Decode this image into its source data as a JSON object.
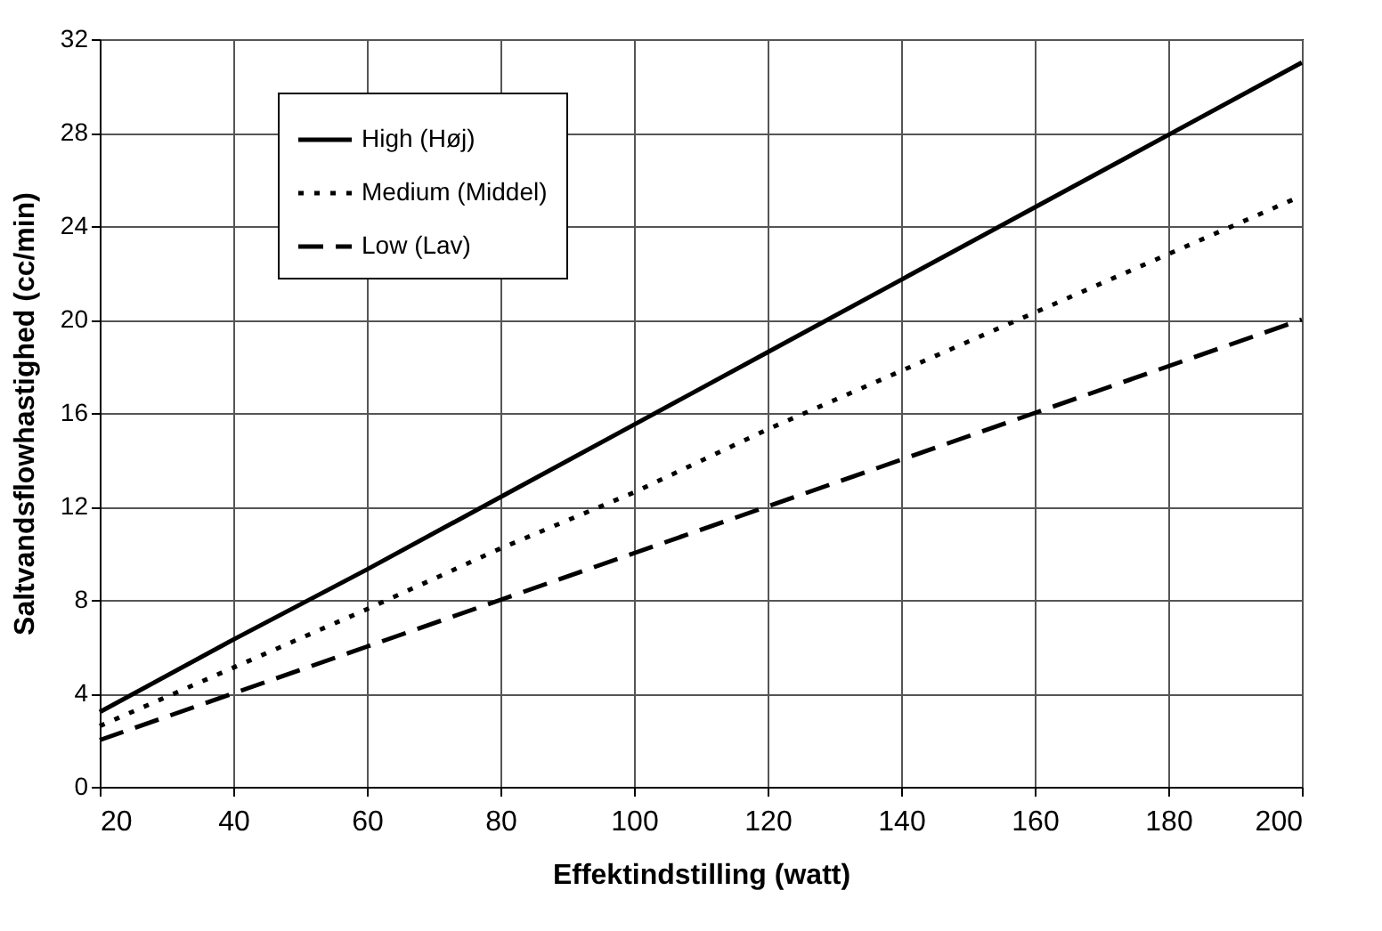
{
  "chart_data": {
    "type": "line",
    "xlabel": "Effektindstilling (watt)",
    "ylabel": "Saltvandsflowhastighed (cc/min)",
    "x": [
      20,
      40,
      60,
      80,
      100,
      120,
      140,
      160,
      180,
      200
    ],
    "series": [
      {
        "name": "High (Høj)",
        "color": "#000000",
        "line_style": "solid",
        "values": [
          3.2,
          6.3,
          9.3,
          12.4,
          15.5,
          18.6,
          21.7,
          24.8,
          27.9,
          31.0
        ]
      },
      {
        "name": "Medium (Middel)",
        "color": "#000000",
        "line_style": "dotted",
        "values": [
          2.6,
          5.1,
          7.6,
          10.2,
          12.6,
          15.3,
          17.8,
          20.3,
          22.8,
          25.3
        ]
      },
      {
        "name": "Low (Lav)",
        "color": "#000000",
        "line_style": "dashed",
        "values": [
          2.0,
          4.0,
          6.0,
          8.0,
          10.0,
          12.0,
          14.0,
          16.0,
          18.0,
          20.0
        ]
      }
    ],
    "xlim": [
      20,
      200
    ],
    "xticks": [
      20,
      40,
      60,
      80,
      100,
      120,
      140,
      160,
      180,
      200
    ],
    "ylim": [
      0,
      32
    ],
    "yticks": [
      0,
      4,
      8,
      12,
      16,
      20,
      24,
      28,
      32
    ],
    "grid": true,
    "legend": "top left",
    "marker": "none"
  }
}
